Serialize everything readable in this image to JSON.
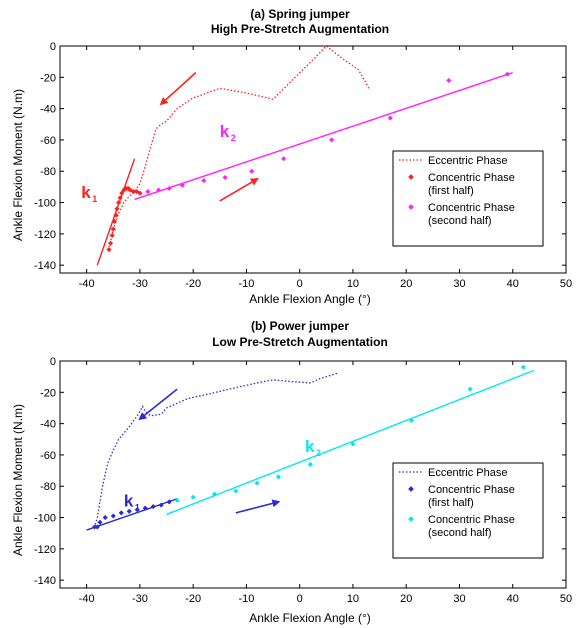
{
  "chart_data": [
    {
      "type": "scatter",
      "title": "(a) Spring jumper",
      "subtitle": "High Pre-Stretch Augmentation",
      "xlabel": "Ankle Flexion Angle (°)",
      "ylabel": "Ankle Flexion Moment (N.m)",
      "xlim": [
        -45,
        50
      ],
      "ylim": [
        -145,
        0
      ],
      "xticks": [
        -40,
        -30,
        -20,
        -10,
        0,
        10,
        20,
        30,
        40,
        50
      ],
      "yticks": [
        0,
        -20,
        -40,
        -60,
        -80,
        -100,
        -120,
        -140
      ],
      "grid": false,
      "legend_position": "lower-right",
      "colors": {
        "eccentric": "#ff2020",
        "concentric_first": "#ff2020",
        "concentric_second": "#ff22ff"
      },
      "legend": [
        {
          "label": "Eccentric Phase",
          "style": "dotted-line",
          "color": "#ff2020"
        },
        {
          "label": "Concentric Phase\n(first half)",
          "style": "diamond",
          "color": "#ff2020"
        },
        {
          "label": "Concentric Phase\n(second half)",
          "style": "diamond",
          "color": "#ff22ff"
        }
      ],
      "series": [
        {
          "name": "Eccentric Phase",
          "kind": "dotted-line",
          "color": "#ff2020",
          "x": [
            13,
            11,
            8,
            5,
            3,
            -5,
            -10,
            -15,
            -19,
            -20,
            -23,
            -25,
            -26,
            -27,
            -28,
            -29,
            -30,
            -31,
            -32,
            -33,
            -34,
            -35,
            -35.5,
            -36,
            -35.5
          ],
          "y": [
            -27,
            -15,
            -8,
            0,
            -7,
            -34,
            -30,
            -27,
            -32,
            -33,
            -40,
            -48,
            -50,
            -53,
            -65,
            -77,
            -88,
            -93,
            -96,
            -100,
            -107,
            -117,
            -125,
            -130,
            -131
          ]
        },
        {
          "name": "Concentric Phase (first half)",
          "kind": "points",
          "color": "#ff2020",
          "x": [
            -35.8,
            -35.5,
            -35.2,
            -35,
            -34.8,
            -34.5,
            -34.3,
            -34,
            -33.7,
            -33.4,
            -33,
            -32.6,
            -32.2,
            -31.8,
            -31.2,
            -30.6,
            -30
          ],
          "y": [
            -130,
            -126,
            -121,
            -117,
            -112,
            -108,
            -104,
            -100,
            -97,
            -94,
            -92,
            -91,
            -91,
            -92,
            -93,
            -93,
            -94
          ]
        },
        {
          "name": "Concentric Phase (second half)",
          "kind": "points",
          "color": "#ff22ff",
          "x": [
            -28.5,
            -26.5,
            -24.5,
            -22,
            -18,
            -14,
            -9,
            -3,
            6,
            17,
            28,
            39
          ],
          "y": [
            -93,
            -92,
            -91,
            -89,
            -86,
            -84,
            -80,
            -72,
            -60,
            -46,
            -22,
            -18
          ]
        }
      ],
      "fits": [
        {
          "name": "k1",
          "color": "#ff2020",
          "x": [
            -38,
            -31
          ],
          "y": [
            -140,
            -72
          ]
        },
        {
          "name": "k2",
          "color": "#ff22ff",
          "x": [
            -31,
            40
          ],
          "y": [
            -98,
            -17
          ]
        }
      ],
      "arrows": [
        {
          "color": "#ff2020",
          "from": [
            -19.5,
            -17
          ],
          "to": [
            -26,
            -37
          ]
        },
        {
          "color": "#ff2020",
          "from": [
            -15,
            -99
          ],
          "to": [
            -8,
            -85
          ]
        }
      ],
      "annotations": [
        {
          "text": "k",
          "sub": "1",
          "color": "#ff2020",
          "x": -41,
          "y": -97
        },
        {
          "text": "k",
          "sub": "2",
          "color": "#ff22ff",
          "x": -15,
          "y": -58
        }
      ]
    },
    {
      "type": "scatter",
      "title": "(b) Power jumper",
      "subtitle": "Low Pre-Stretch Augmentation",
      "xlabel": "Ankle Flexion Angle (°)",
      "ylabel": "Ankle Flexion Moment (N.m)",
      "xlim": [
        -45,
        50
      ],
      "ylim": [
        -145,
        0
      ],
      "xticks": [
        -40,
        -30,
        -20,
        -10,
        0,
        10,
        20,
        30,
        40,
        50
      ],
      "yticks": [
        0,
        -20,
        -40,
        -60,
        -80,
        -100,
        -120,
        -140
      ],
      "grid": false,
      "legend_position": "lower-right",
      "colors": {
        "eccentric": "#2a2ad8",
        "concentric_first": "#2a2ad8",
        "concentric_second": "#00e8f0"
      },
      "legend": [
        {
          "label": "Eccentric Phase",
          "style": "dotted-line",
          "color": "#2a2ad8"
        },
        {
          "label": "Concentric Phase\n(first half)",
          "style": "diamond",
          "color": "#2a2ad8"
        },
        {
          "label": "Concentric Phase\n(second half)",
          "style": "diamond",
          "color": "#00e8f0"
        }
      ],
      "series": [
        {
          "name": "Eccentric Phase",
          "kind": "dotted-line",
          "color": "#2a2ad8",
          "x": [
            7,
            4,
            2,
            -2,
            -5,
            -8,
            -12,
            -17,
            -21,
            -25,
            -26,
            -28,
            -29,
            -29.5,
            -30.5,
            -32,
            -34,
            -35,
            -36,
            -36.5,
            -37,
            -37.5,
            -38,
            -38.5
          ],
          "y": [
            -8,
            -11,
            -14,
            -13,
            -12,
            -14,
            -17,
            -21,
            -24,
            -30,
            -34,
            -35,
            -32,
            -29,
            -35,
            -42,
            -50,
            -57,
            -65,
            -72,
            -80,
            -90,
            -100,
            -106
          ]
        },
        {
          "name": "Concentric Phase (first half)",
          "kind": "points",
          "color": "#2a2ad8",
          "x": [
            -38.5,
            -38,
            -37.5,
            -36.5,
            -35,
            -33.5,
            -32,
            -30.5,
            -29,
            -27.5,
            -26,
            -24.5
          ],
          "y": [
            -106,
            -106,
            -103,
            -100,
            -99,
            -97,
            -96,
            -95,
            -94,
            -93,
            -92,
            -90
          ]
        },
        {
          "name": "Concentric Phase (second half)",
          "kind": "points",
          "color": "#00e8f0",
          "x": [
            -23,
            -20,
            -16,
            -12,
            -8,
            -4,
            2,
            10,
            21,
            32,
            42
          ],
          "y": [
            -89,
            -87,
            -85,
            -83,
            -78,
            -74,
            -66,
            -53,
            -38,
            -18,
            -4
          ]
        }
      ],
      "fits": [
        {
          "name": "k1",
          "color": "#2a2ad8",
          "x": [
            -40,
            -23
          ],
          "y": [
            -108,
            -88
          ]
        },
        {
          "name": "k2",
          "color": "#00e8f0",
          "x": [
            -25,
            44
          ],
          "y": [
            -98,
            -6
          ]
        }
      ],
      "arrows": [
        {
          "color": "#2a2ad8",
          "from": [
            -23,
            -18
          ],
          "to": [
            -30,
            -37
          ]
        },
        {
          "color": "#2a2ad8",
          "from": [
            -12,
            -97
          ],
          "to": [
            -4,
            -90
          ]
        }
      ],
      "annotations": [
        {
          "text": "k",
          "sub": "1",
          "color": "#2a2ad8",
          "x": -33,
          "y": -93
        },
        {
          "text": "k",
          "sub": "2",
          "color": "#00e8f0",
          "x": 1,
          "y": -58
        }
      ]
    }
  ]
}
